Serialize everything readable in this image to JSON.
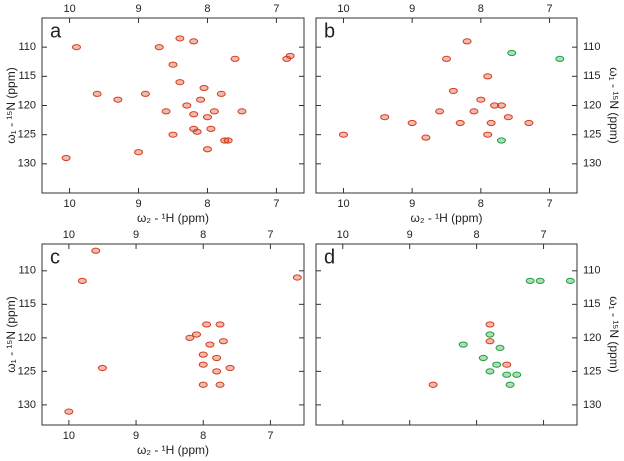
{
  "chart_data": [
    {
      "type": "scatter",
      "label": "a",
      "xlabel": "ω₂ - ¹H (ppm)",
      "ylabel": "ω₁ - ¹⁵N (ppm)",
      "y_axis_side": "left",
      "bottom_tick_labels": true,
      "xlim": [
        10.4,
        6.6
      ],
      "ylim": [
        105,
        135
      ],
      "xticks": [
        10,
        9,
        8,
        7
      ],
      "yticks": [
        110,
        115,
        120,
        125,
        130
      ],
      "series": [
        {
          "color": "#d43a1a",
          "x": [
            10.05,
            8.4,
            8.2,
            7.6,
            6.8,
            6.85,
            7.7,
            7.75,
            8.0,
            9.0,
            8.5,
            8.2,
            8.0,
            8.3,
            8.1,
            7.9,
            8.05,
            8.4,
            7.8,
            8.6,
            8.9,
            9.3,
            9.6,
            9.9,
            8.7,
            7.5,
            8.15,
            7.95,
            8.2,
            8.5
          ],
          "values": [
            129,
            108.5,
            109,
            112,
            111.5,
            112,
            126,
            126,
            127.5,
            128,
            125,
            124,
            122,
            120,
            119,
            121,
            117,
            116,
            118,
            121,
            118,
            119,
            118,
            110,
            110,
            121,
            124.5,
            124,
            121.5,
            113
          ]
        }
      ]
    },
    {
      "type": "scatter",
      "label": "b",
      "xlabel": "ω₂ - ¹H (ppm)",
      "ylabel": "ω₁ - ¹⁵N (ppm)",
      "y_axis_side": "right",
      "bottom_tick_labels": true,
      "xlim": [
        10.4,
        6.6
      ],
      "ylim": [
        105,
        135
      ],
      "xticks": [
        10,
        9,
        8,
        7
      ],
      "yticks": [
        110,
        115,
        120,
        125,
        130
      ],
      "series": [
        {
          "color": "#d43a1a",
          "x": [
            8.2,
            8.5,
            7.9,
            8.0,
            7.8,
            7.7,
            8.1,
            8.3,
            7.85,
            8.6,
            9.0,
            9.4,
            10.0,
            8.8,
            7.9,
            7.6,
            7.3,
            8.4
          ],
          "values": [
            109,
            112,
            115,
            119,
            120,
            120,
            121,
            123,
            123,
            121,
            123,
            122,
            125,
            125.5,
            125,
            122,
            123,
            117.5
          ]
        },
        {
          "color": "#1a9e3a",
          "x": [
            7.55,
            6.85,
            7.7
          ],
          "values": [
            111,
            112,
            126
          ]
        }
      ]
    },
    {
      "type": "scatter",
      "label": "c",
      "xlabel": "ω₂ - ¹H (ppm)",
      "ylabel": "ω₁ - ¹⁵N (ppm)",
      "y_axis_side": "left",
      "bottom_tick_labels": true,
      "xlim": [
        10.4,
        6.5
      ],
      "ylim": [
        106,
        133
      ],
      "xticks": [
        10,
        9,
        8,
        7
      ],
      "yticks": [
        110,
        115,
        120,
        125,
        130
      ],
      "series": [
        {
          "color": "#d43a1a",
          "x": [
            7.95,
            7.75,
            8.1,
            8.2,
            7.9,
            7.7,
            8.0,
            7.8,
            8.0,
            7.8,
            8.0,
            7.75,
            9.8,
            9.5,
            10.0,
            6.6,
            7.6,
            9.6
          ],
          "values": [
            118,
            118,
            119.5,
            120,
            121,
            120.5,
            122.5,
            123,
            124,
            125,
            127,
            127,
            111.5,
            124.5,
            131,
            111,
            124.5,
            107
          ]
        }
      ]
    },
    {
      "type": "scatter",
      "label": "d",
      "ylabel": "ω₁ - ¹⁵N (ppm)",
      "y_axis_side": "right",
      "bottom_tick_labels": false,
      "xlim": [
        10.4,
        6.5
      ],
      "ylim": [
        106,
        133
      ],
      "xticks": [
        10,
        9,
        8,
        7
      ],
      "yticks": [
        110,
        115,
        120,
        125,
        130
      ],
      "series": [
        {
          "color": "#1a9e3a",
          "x": [
            6.6,
            7.2,
            7.05,
            7.8,
            8.2,
            7.7,
            7.55,
            7.4,
            7.5,
            7.9,
            7.65,
            7.8
          ],
          "values": [
            111.5,
            111.5,
            111.5,
            119.5,
            121,
            124,
            125.5,
            125.5,
            127,
            123,
            121.5,
            125
          ]
        },
        {
          "color": "#d43a1a",
          "x": [
            7.8,
            8.65,
            7.8,
            7.55
          ],
          "values": [
            118,
            127,
            120.5,
            124
          ]
        }
      ]
    }
  ]
}
